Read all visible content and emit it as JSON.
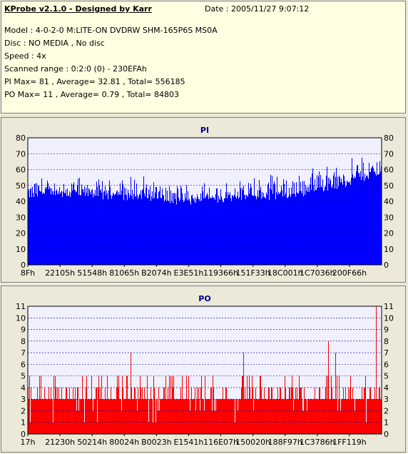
{
  "info": {
    "title": "KProbe v2.1.0 - Designed by Karr",
    "date": "Date : 2005/11/27 9:07:12",
    "lines": [
      "Model : 4-0-2-0 M:LITE-ON DVDRW SHM-165P6S MS0A",
      "Disc : NO MEDIA , No disc",
      "Speed : 4x",
      "Scanned range : 0:2:0 (0) - 230EFAh",
      "PI Max= 81 , Average= 32.81 , Total= 556185",
      "PO Max= 11 , Average= 0.79 , Total= 84803"
    ]
  },
  "chart_data": [
    {
      "type": "bar",
      "title": "PI",
      "color": "#0000ff",
      "plot_background": "#f0f0ff",
      "grid": true,
      "ylim": [
        0,
        80
      ],
      "yticks": [
        0,
        10,
        20,
        30,
        40,
        50,
        60,
        70,
        80
      ],
      "xtick_labels": [
        "8Fh",
        "22105h",
        "51548h",
        "81065h",
        "B2074h",
        "E3E51h",
        "119366h",
        "151F33h",
        "18C001h",
        "1C7036h",
        "200F66h"
      ],
      "profile": {
        "x_fraction": [
          0.0,
          0.05,
          0.15,
          0.3,
          0.45,
          0.55,
          0.65,
          0.75,
          0.8,
          0.9,
          0.95,
          1.0
        ],
        "typical": [
          45,
          47,
          46,
          44,
          41,
          43,
          44,
          45,
          48,
          52,
          56,
          58
        ],
        "peak": [
          54,
          56,
          57,
          58,
          54,
          55,
          58,
          60,
          63,
          68,
          75,
          81
        ]
      }
    },
    {
      "type": "bar",
      "title": "PO",
      "color": "#ff0000",
      "plot_background": "#f0f0ff",
      "grid": true,
      "ylim": [
        0,
        11
      ],
      "yticks": [
        0,
        1,
        2,
        3,
        4,
        5,
        6,
        7,
        8,
        9,
        10,
        11
      ],
      "xtick_labels": [
        "17h",
        "21230h",
        "50214h",
        "80024h",
        "B0023h",
        "E1541h",
        "116E07h",
        "150020h",
        "188F97h",
        "1C3786h",
        "1FF119h"
      ],
      "profile": {
        "typical": 3,
        "common_max": 5,
        "spikes": [
          {
            "x_fraction": 0.29,
            "value": 7
          },
          {
            "x_fraction": 0.61,
            "value": 7
          },
          {
            "x_fraction": 0.85,
            "value": 8
          },
          {
            "x_fraction": 0.87,
            "value": 7
          },
          {
            "x_fraction": 0.985,
            "value": 11
          }
        ]
      }
    }
  ]
}
